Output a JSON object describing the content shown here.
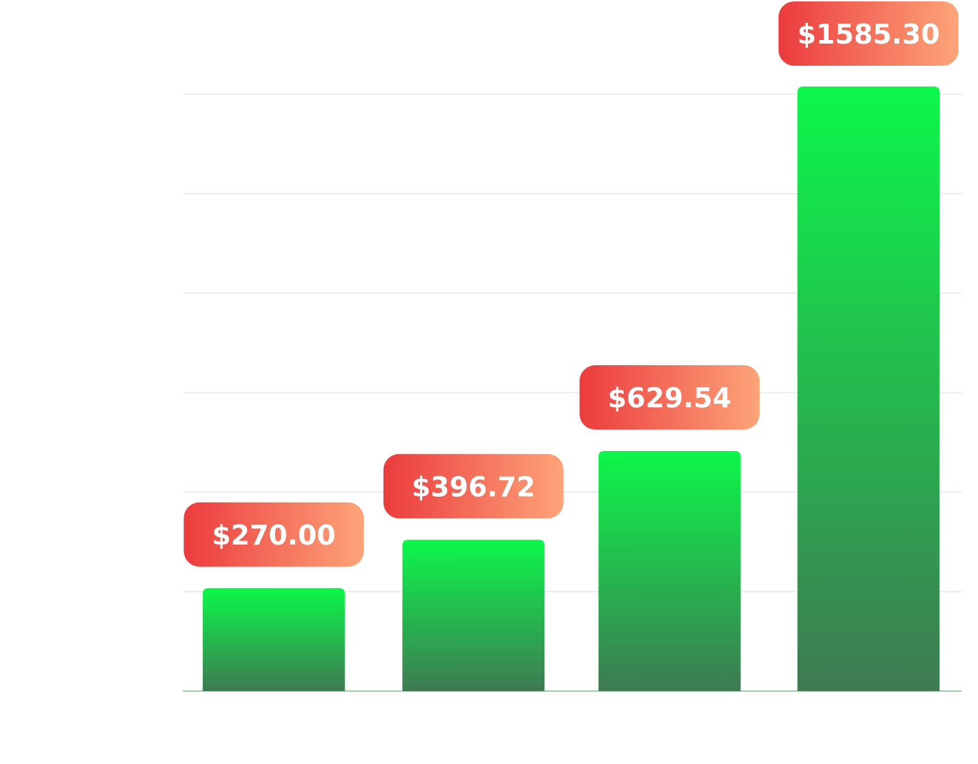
{
  "chart_data": {
    "type": "bar",
    "categories": [
      "",
      "",
      "",
      ""
    ],
    "values": [
      270.0,
      396.72,
      629.54,
      1585.3
    ],
    "data_labels": [
      "$270.00",
      "$396.72",
      "$629.54",
      "$1585.30"
    ],
    "title": "",
    "xlabel": "",
    "ylabel": "",
    "ylim": [
      0,
      1600
    ],
    "grid": true,
    "legend": "none"
  },
  "colors": {
    "bar_top": "#0cf74a",
    "bar_bottom": "#3e7a52",
    "label_left": "#ec3b3e",
    "label_right": "#fda479",
    "label_text": "#ffffff",
    "gridline": "#ececec",
    "baseline": "#9fd1ac"
  }
}
